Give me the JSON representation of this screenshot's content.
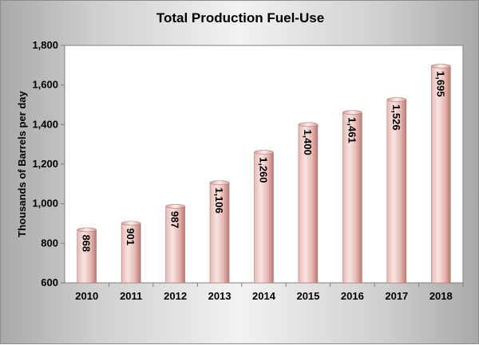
{
  "chart_data": {
    "type": "bar",
    "title": "Total Production Fuel-Use",
    "xlabel": "",
    "ylabel": "Thousands of Barrels per day",
    "categories": [
      "2010",
      "2011",
      "2012",
      "2013",
      "2014",
      "2015",
      "2016",
      "2017",
      "2018"
    ],
    "values": [
      868,
      901,
      987,
      1106,
      1260,
      1400,
      1461,
      1526,
      1695
    ],
    "data_labels": [
      "868",
      "901",
      "987",
      "1,106",
      "1,260",
      "1,400",
      "1,461",
      "1,526",
      "1,695"
    ],
    "ylim": [
      600,
      1800
    ],
    "yticks": [
      600,
      800,
      1000,
      1200,
      1400,
      1600,
      1800
    ],
    "ytick_labels": [
      "600",
      "800",
      "1,000",
      "1,200",
      "1,400",
      "1,600",
      "1,800"
    ],
    "grid": false,
    "legend": "none",
    "colors": {
      "bar_light": "#f8e4e2",
      "bar_mid": "#e8b7b2",
      "bar_dark": "#b77a74",
      "plot_background": "#ffffff"
    }
  }
}
